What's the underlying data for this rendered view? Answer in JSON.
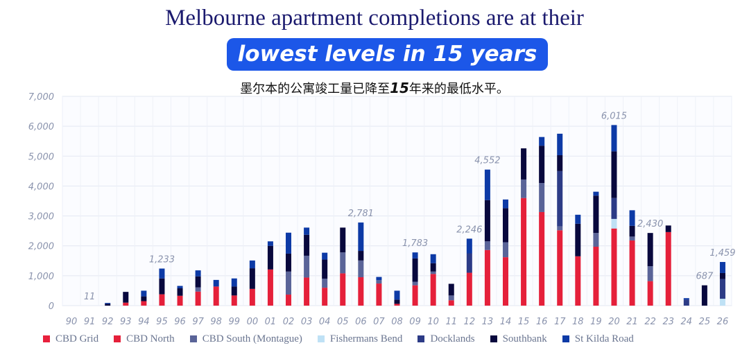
{
  "title_line1": "Melbourne apartment completions are at their",
  "title_line2": "lowest levels in 15 years",
  "subtitle_pre": "墨尔本的公寓竣工量已降至",
  "subtitle_num": "15",
  "subtitle_post": "年来的最低水平。",
  "chart_data": {
    "type": "bar",
    "stacked": true,
    "ylim": [
      0,
      7000
    ],
    "yticks": [
      "0",
      "1,000",
      "2,000",
      "3,000",
      "4,000",
      "5,000",
      "6,000",
      "7,000"
    ],
    "ytick_values": [
      0,
      1000,
      2000,
      3000,
      4000,
      5000,
      6000,
      7000
    ],
    "grid": true,
    "legend_position": "bottom",
    "categories": [
      "90",
      "91",
      "92",
      "93",
      "94",
      "95",
      "96",
      "97",
      "98",
      "99",
      "00",
      "01",
      "02",
      "03",
      "04",
      "05",
      "06",
      "07",
      "08",
      "09",
      "10",
      "11",
      "12",
      "13",
      "14",
      "15",
      "16",
      "17",
      "18",
      "19",
      "20",
      "21",
      "22",
      "23",
      "24",
      "25",
      "26"
    ],
    "series": [
      {
        "name": "CBD Grid",
        "color": "#e8203c",
        "values": [
          0,
          0,
          0,
          0,
          0,
          0,
          0,
          0,
          0,
          0,
          0,
          0,
          0,
          0,
          0,
          0,
          0,
          0,
          0,
          0,
          0,
          0,
          0,
          0,
          0,
          0,
          0,
          0,
          0,
          0,
          0,
          0,
          0,
          0,
          0,
          0,
          0
        ]
      },
      {
        "name": "CBD North",
        "color": "#e5203a",
        "values": [
          0,
          0,
          0,
          100,
          150,
          380,
          330,
          470,
          640,
          340,
          560,
          1210,
          370,
          940,
          600,
          1080,
          950,
          740,
          60,
          680,
          1060,
          180,
          1100,
          1860,
          1620,
          3600,
          3130,
          2520,
          1650,
          1970,
          2580,
          2180,
          820,
          2460,
          0,
          0,
          0
        ]
      },
      {
        "name": "CBD South (Montague)",
        "color": "#5a6498",
        "values": [
          0,
          0,
          0,
          0,
          0,
          0,
          0,
          140,
          0,
          0,
          0,
          0,
          770,
          730,
          300,
          700,
          560,
          110,
          0,
          120,
          80,
          160,
          0,
          290,
          500,
          620,
          970,
          130,
          0,
          460,
          0,
          130,
          500,
          0,
          0,
          0,
          0
        ]
      },
      {
        "name": "Fishermans Bend",
        "color": "#bfe1f5",
        "values": [
          0,
          0,
          0,
          0,
          0,
          0,
          0,
          0,
          0,
          0,
          0,
          0,
          0,
          0,
          0,
          0,
          0,
          0,
          0,
          0,
          0,
          0,
          0,
          0,
          0,
          0,
          0,
          0,
          0,
          0,
          320,
          0,
          0,
          0,
          0,
          0,
          230
        ]
      },
      {
        "name": "Docklands",
        "color": "#2c3b86",
        "values": [
          0,
          0,
          0,
          0,
          0,
          0,
          0,
          0,
          0,
          0,
          0,
          0,
          0,
          0,
          0,
          0,
          0,
          0,
          0,
          0,
          0,
          0,
          650,
          0,
          0,
          0,
          0,
          1850,
          0,
          0,
          700,
          0,
          0,
          0,
          200,
          0,
          660
        ]
      },
      {
        "name": "Southbank",
        "color": "#08083d",
        "values": [
          0,
          0,
          60,
          360,
          160,
          530,
          250,
          370,
          0,
          300,
          690,
          790,
          600,
          700,
          640,
          830,
          320,
          0,
          140,
          780,
          280,
          390,
          0,
          1380,
          1140,
          1040,
          1250,
          530,
          1090,
          1250,
          1560,
          360,
          1110,
          220,
          0,
          680,
          200
        ]
      },
      {
        "name": "St Kilda Road",
        "color": "#0d3aa6",
        "values": [
          0,
          0,
          30,
          0,
          190,
          330,
          80,
          200,
          220,
          270,
          260,
          150,
          700,
          240,
          230,
          0,
          950,
          110,
          300,
          200,
          300,
          0,
          490,
          1020,
          290,
          0,
          290,
          720,
          300,
          130,
          880,
          520,
          0,
          0,
          50,
          0,
          370
        ]
      }
    ],
    "data_labels": [
      {
        "category": "91",
        "value": "11"
      },
      {
        "category": "95",
        "value": "1,233"
      },
      {
        "category": "06",
        "value": "2,781"
      },
      {
        "category": "09",
        "value": "1,783"
      },
      {
        "category": "12",
        "value": "2,246"
      },
      {
        "category": "13",
        "value": "4,552"
      },
      {
        "category": "20",
        "value": "6,015"
      },
      {
        "category": "22",
        "value": "2,430"
      },
      {
        "category": "25",
        "value": "687"
      },
      {
        "category": "26",
        "value": "1,459"
      }
    ]
  },
  "legend": {
    "items": [
      {
        "label": "CBD Grid",
        "color": "#e8203c"
      },
      {
        "label": "CBD North",
        "color": "#e5203a"
      },
      {
        "label": "CBD South (Montague)",
        "color": "#5a6498"
      },
      {
        "label": "Fishermans Bend",
        "color": "#bfe1f5"
      },
      {
        "label": "Docklands",
        "color": "#2c3b86"
      },
      {
        "label": "Southbank",
        "color": "#08083d"
      },
      {
        "label": "St Kilda Road",
        "color": "#0d3aa6"
      }
    ]
  }
}
